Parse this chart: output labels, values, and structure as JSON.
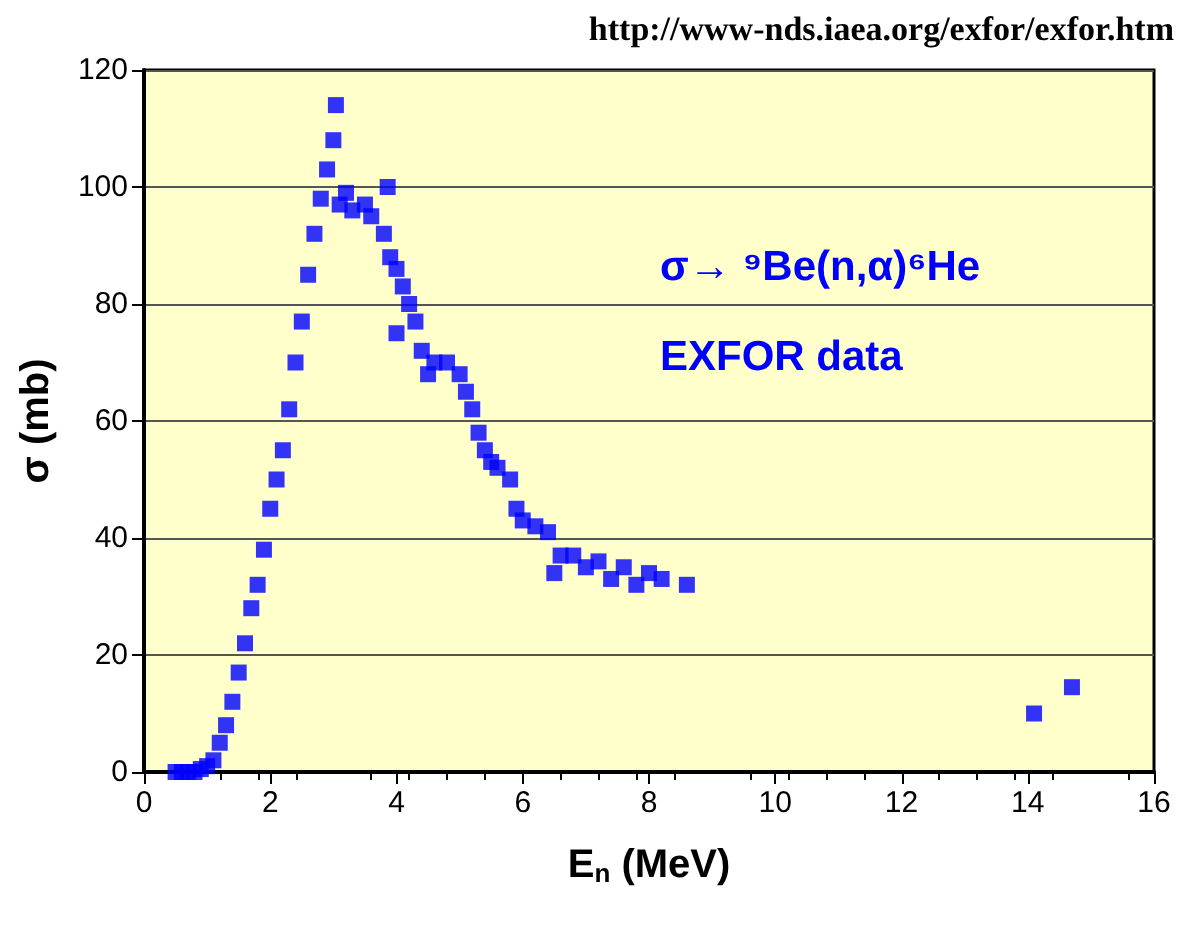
{
  "chart_data": {
    "type": "scatter",
    "xlabel": "E$_{n}$ (MeV)",
    "ylabel": "σ (mb)",
    "annotations": [
      "http://www-nds.iaea.org/exfor/exfor.htm",
      "σ→ ⁹Be(n,α)⁶He",
      "EXFOR data"
    ],
    "xlim": [
      0,
      16
    ],
    "xticks": [
      0,
      2,
      4,
      6,
      8,
      10,
      12,
      14,
      16
    ],
    "ylim": [
      0,
      120
    ],
    "yticks": [
      0,
      20,
      40,
      60,
      80,
      100,
      120
    ],
    "grid": "y",
    "marker": "square",
    "series": [
      {
        "color": "#0000ff",
        "x": [
          0.5,
          0.6,
          0.7,
          0.8,
          0.9,
          1.0,
          1.1,
          1.2,
          1.3,
          1.4,
          1.5,
          1.6,
          1.7,
          1.8,
          1.9,
          2.0,
          2.1,
          2.2,
          2.3,
          2.4,
          2.5,
          2.6,
          2.7,
          2.8,
          2.9,
          3.0,
          3.04,
          3.1,
          3.2,
          3.3,
          3.5,
          3.6,
          3.8,
          3.86,
          3.9,
          4.0,
          4.0,
          4.1,
          4.2,
          4.3,
          4.4,
          4.5,
          4.6,
          4.8,
          5.0,
          5.1,
          5.2,
          5.3,
          5.4,
          5.5,
          5.6,
          5.8,
          5.9,
          6.0,
          6.2,
          6.4,
          6.5,
          6.6,
          6.8,
          7.0,
          7.2,
          7.4,
          7.6,
          7.8,
          8.0,
          8.2,
          8.6,
          14.1,
          14.7
        ],
        "values": [
          0,
          0,
          0,
          0,
          0.5,
          1,
          2,
          5,
          8,
          12,
          17,
          22,
          28,
          32,
          38,
          45,
          50,
          55,
          62,
          70,
          77,
          85,
          92,
          98,
          103,
          108,
          114,
          97,
          99,
          96,
          97,
          95,
          92,
          100,
          88,
          86,
          75,
          83,
          80,
          77,
          72,
          68,
          70,
          70,
          68,
          65,
          62,
          58,
          55,
          53,
          52,
          50,
          45,
          43,
          42,
          41,
          34,
          37,
          37,
          35,
          36,
          33,
          35,
          32,
          34,
          33,
          32,
          10,
          14.5
        ]
      }
    ]
  }
}
